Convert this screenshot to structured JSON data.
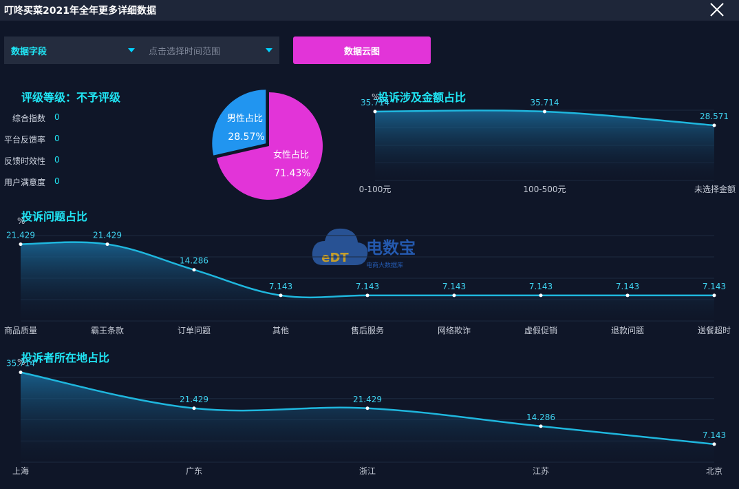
{
  "window": {
    "title": "叮咚买菜2021年全年更多详细数据"
  },
  "filters": {
    "field_select": "数据字段",
    "time_range_placeholder": "点击选择时间范围",
    "cloud_button": "数据云图"
  },
  "rating": {
    "title": "评级等级：不予评级",
    "metrics": [
      {
        "label": "综合指数",
        "value": "0"
      },
      {
        "label": "平台反馈率",
        "value": "0"
      },
      {
        "label": "反馈时效性",
        "value": "0"
      },
      {
        "label": "用户满意度",
        "value": "0"
      }
    ]
  },
  "watermark": {
    "brand": "电数宝",
    "sub": "电商大数据库"
  },
  "colors": {
    "accent": "#20e6f5",
    "line": "#1fb7de",
    "male": "#2195f0",
    "female": "#e234d8",
    "button": "#e234d8",
    "background": "#0f1628"
  },
  "chart_data": [
    {
      "id": "gender",
      "type": "pie",
      "slices": [
        {
          "name": "男性占比",
          "value": 28.57,
          "label": "28.57%"
        },
        {
          "name": "女性占比",
          "value": 71.43,
          "label": "71.43%"
        }
      ]
    },
    {
      "id": "amount",
      "type": "area",
      "title": "投诉涉及金额占比",
      "ylabel": "%",
      "categories": [
        "0-100元",
        "100-500元",
        "未选择金额"
      ],
      "values": [
        35.714,
        35.714,
        28.571
      ],
      "labels": [
        "35.714",
        "35.714",
        "28.571"
      ],
      "ylim": [
        0,
        40
      ]
    },
    {
      "id": "issues",
      "type": "area",
      "title": "投诉问题占比",
      "ylabel": "%",
      "categories": [
        "商品质量",
        "霸王条款",
        "订单问题",
        "其他",
        "售后服务",
        "网络欺诈",
        "虚假促销",
        "退款问题",
        "送餐超时"
      ],
      "values": [
        21.429,
        21.429,
        14.286,
        7.143,
        7.143,
        7.143,
        7.143,
        7.143,
        7.143
      ],
      "labels": [
        "21.429",
        "21.429",
        "14.286",
        "7.143",
        "7.143",
        "7.143",
        "7.143",
        "7.143",
        "7.143"
      ],
      "ylim": [
        0,
        25
      ]
    },
    {
      "id": "region",
      "type": "area",
      "title": "投诉者所在地占比",
      "ylabel": "%",
      "categories": [
        "上海",
        "广东",
        "浙江",
        "江苏",
        "北京"
      ],
      "values": [
        35.714,
        21.429,
        21.429,
        14.286,
        7.143
      ],
      "labels": [
        "35.714",
        "21.429",
        "21.429",
        "14.286",
        "7.143"
      ],
      "ylim": [
        0,
        40
      ]
    }
  ]
}
